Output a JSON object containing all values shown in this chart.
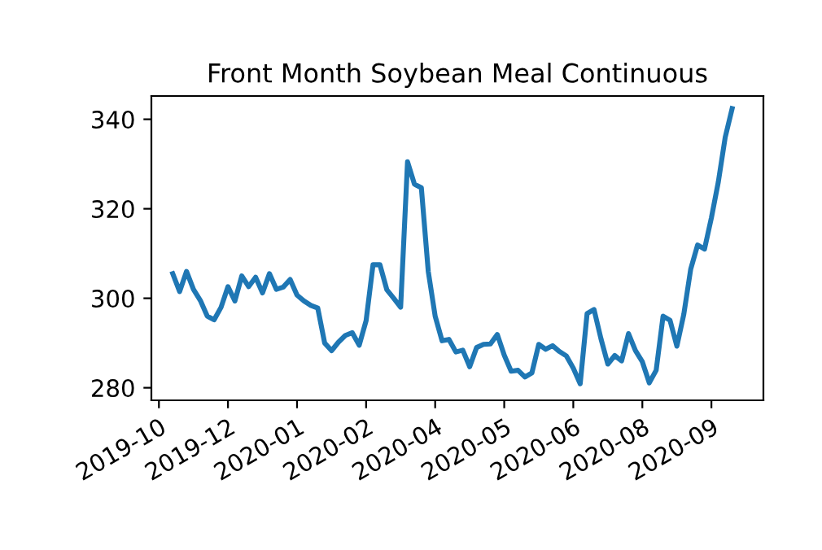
{
  "chart_data": {
    "type": "line",
    "title": "Front Month Soybean Meal Continuous",
    "categories": [
      "2019-10",
      null,
      null,
      null,
      null,
      null,
      null,
      null,
      null,
      null,
      "2019-12",
      null,
      null,
      null,
      null,
      null,
      null,
      null,
      null,
      null,
      "2020-01",
      null,
      null,
      null,
      null,
      null,
      null,
      null,
      null,
      null,
      "2020-02",
      null,
      null,
      null,
      null,
      null,
      null,
      null,
      null,
      null,
      "2020-04",
      null,
      null,
      null,
      null,
      null,
      null,
      null,
      null,
      null,
      "2020-05",
      null,
      null,
      null,
      null,
      null,
      null,
      null,
      null,
      null,
      "2020-06",
      null,
      null,
      null,
      null,
      null,
      null,
      null,
      null,
      null,
      "2020-08",
      null,
      null,
      null,
      null,
      null,
      null,
      null,
      null,
      null,
      "2020-09",
      null,
      null,
      null
    ],
    "series": [
      {
        "color": "#1f77b4",
        "values": [
          null,
          null,
          305.5,
          301.5,
          306,
          302,
          299.5,
          296,
          295.2,
          298,
          302.6,
          299.4,
          305,
          302.6,
          304.7,
          301.2,
          305.5,
          302,
          302.5,
          304.2,
          300.7,
          299.4,
          298.4,
          297.8,
          290,
          288.3,
          290.2,
          291.7,
          292.3,
          289.5,
          295,
          307.5,
          307.5,
          301.9,
          300,
          298,
          330.5,
          325.5,
          324.7,
          306,
          296,
          290.5,
          290.8,
          288,
          288.4,
          284.7,
          289,
          289.7,
          289.8,
          291.9,
          287.3,
          283.7,
          283.9,
          282.4,
          283.3,
          289.7,
          288.6,
          289.4,
          288.1,
          287.1,
          284.4,
          280.9,
          296.6,
          297.5,
          291,
          285.3,
          287.2,
          286,
          292.1,
          288.3,
          285.8,
          281.1,
          283.9,
          296,
          295.1,
          289.3,
          296.4,
          306.5,
          311.9,
          311,
          318,
          326,
          336,
          342.4
        ]
      }
    ],
    "ylim": [
      277.2,
      345.2
    ],
    "yticks": [
      280,
      300,
      320,
      340
    ],
    "grid": false,
    "line_style": "solid",
    "marker": "none"
  }
}
